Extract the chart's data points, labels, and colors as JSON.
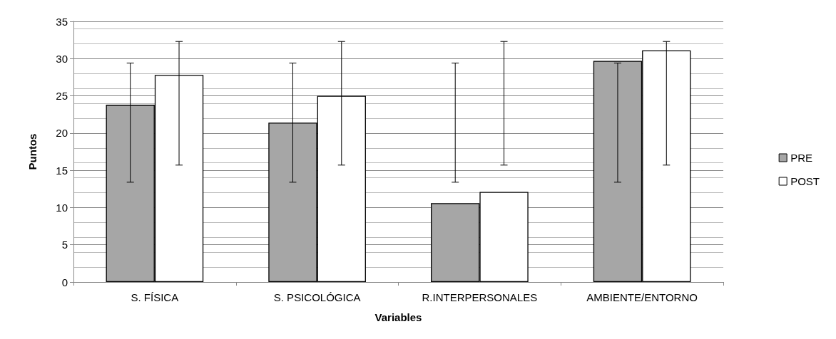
{
  "chart_data": {
    "type": "bar",
    "xlabel": "Variables",
    "ylabel": "Puntos",
    "categories": [
      "S. FÍSICA",
      "S. PSICOLÓGICA",
      "R.INTERPERSONALES",
      "AMBIENTE/ENTORNO"
    ],
    "series": [
      {
        "name": "PRE",
        "color": "#a6a6a6",
        "values": [
          23.8,
          21.4,
          10.6,
          29.7
        ],
        "errors": [
          [
            13.4,
            29.4
          ],
          [
            13.4,
            29.4
          ],
          [
            13.4,
            29.4
          ],
          [
            13.4,
            29.4
          ]
        ]
      },
      {
        "name": "POST",
        "color": "#ffffff",
        "values": [
          27.8,
          25.0,
          12.1,
          31.1
        ],
        "errors": [
          [
            15.7,
            32.3
          ],
          [
            15.7,
            32.3
          ],
          [
            15.7,
            32.3
          ],
          [
            15.7,
            32.3
          ]
        ]
      }
    ],
    "ylim": [
      0,
      35
    ],
    "yticks": [
      0,
      5,
      10,
      15,
      20,
      25,
      30,
      35
    ],
    "grid": "y",
    "legend": "right"
  }
}
